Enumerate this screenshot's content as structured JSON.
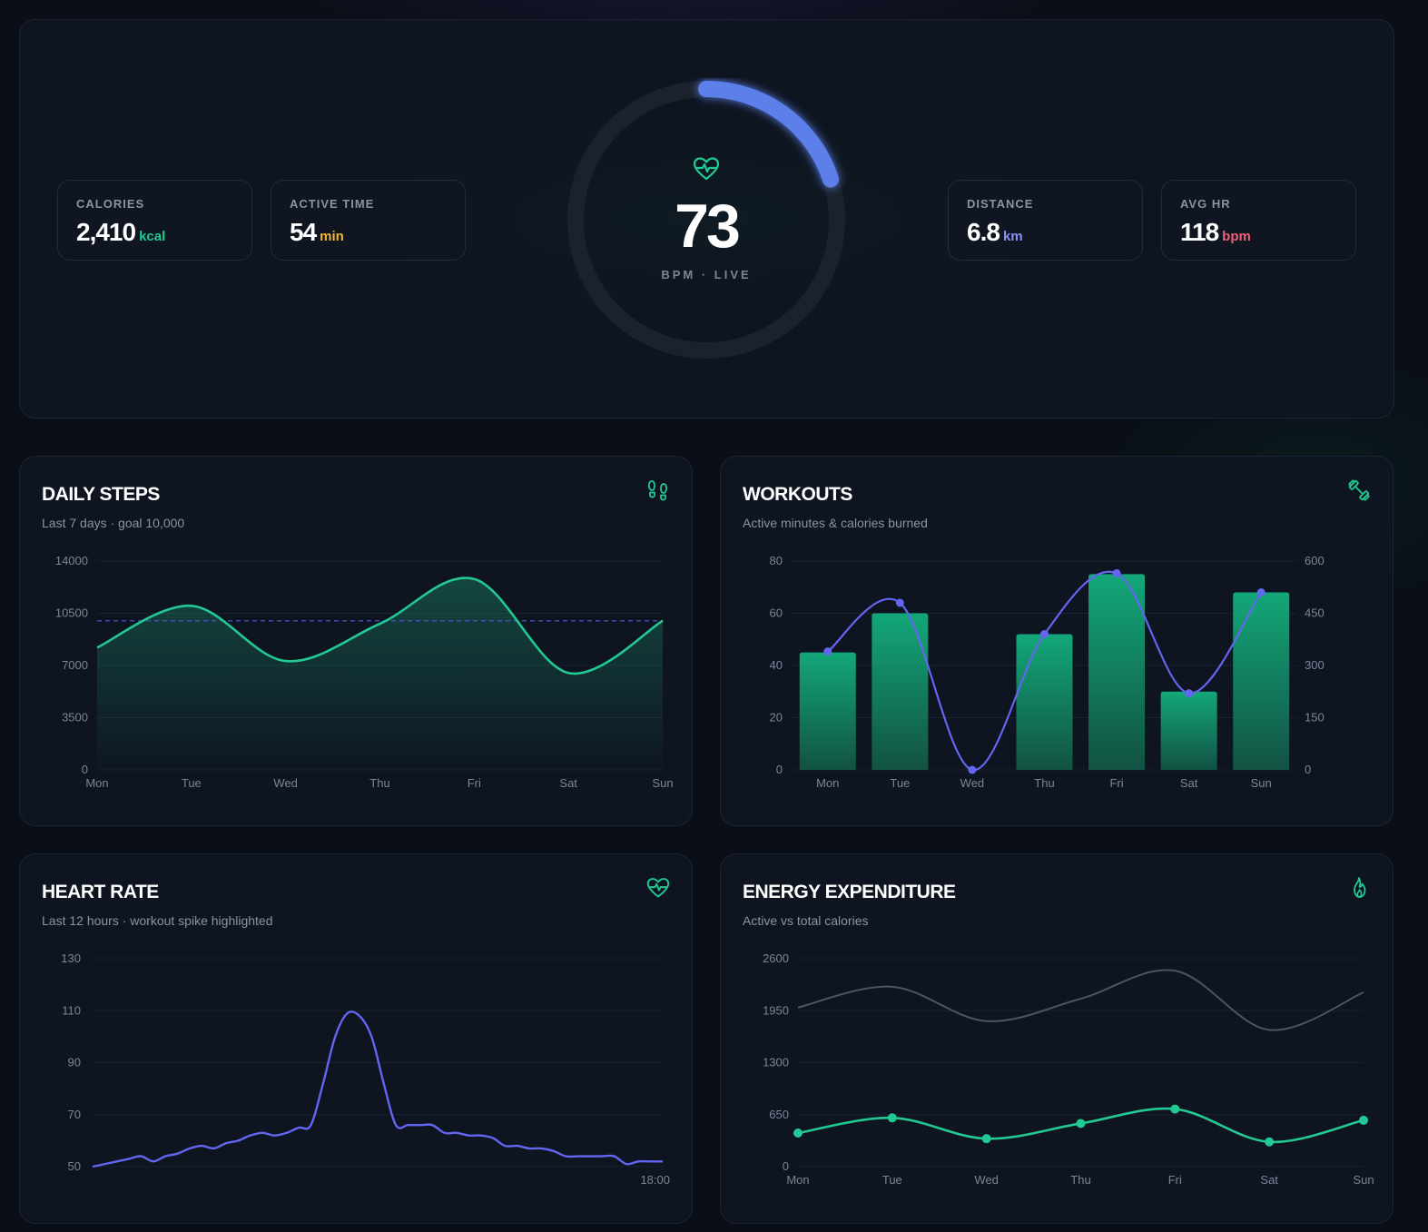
{
  "hero": {
    "stats_left": [
      {
        "label": "CALORIES",
        "value": "2,410",
        "unit": "kcal",
        "unit_color": "#22c993"
      },
      {
        "label": "ACTIVE TIME",
        "value": "54",
        "unit": "min",
        "unit_color": "#f5b731"
      }
    ],
    "stats_right": [
      {
        "label": "DISTANCE",
        "value": "6.8",
        "unit": "km",
        "unit_color": "#8b8ff5"
      },
      {
        "label": "AVG HR",
        "value": "118",
        "unit": "bpm",
        "unit_color": "#f0627a"
      }
    ],
    "bpm": {
      "value": "73",
      "label": "BPM · LIVE",
      "icon": "heart-pulse-icon",
      "ring_progress": 0.2
    }
  },
  "colors": {
    "accent_green": "#22c993",
    "accent_indigo": "#6366f1",
    "ring_blue": "#5b7fea"
  },
  "steps_card": {
    "title": "DAILY STEPS",
    "subtitle": "Last 7 days · goal 10,000",
    "icon": "footprints-icon",
    "chart_data": {
      "type": "area",
      "categories": [
        "Mon",
        "Tue",
        "Wed",
        "Thu",
        "Fri",
        "Sat",
        "Sun"
      ],
      "values": [
        8200,
        11000,
        7300,
        9800,
        12800,
        6500,
        10000
      ],
      "goal": 10000,
      "ylim": [
        0,
        14000
      ],
      "yticks": [
        "14000",
        "10500",
        "7000",
        "3500",
        "0"
      ]
    }
  },
  "workouts_card": {
    "title": "WORKOUTS",
    "subtitle": "Active minutes & calories burned",
    "icon": "dumbbell-icon",
    "chart_data": {
      "type": "bar",
      "categories": [
        "Mon",
        "Tue",
        "Wed",
        "Thu",
        "Fri",
        "Sat",
        "Sun"
      ],
      "series": [
        {
          "values": [
            45,
            60,
            0,
            52,
            75,
            30,
            68
          ],
          "axis": "left"
        },
        {
          "values": [
            340,
            480,
            0,
            390,
            565,
            220,
            510
          ],
          "axis": "right",
          "type": "line"
        }
      ],
      "ylim_left": [
        0,
        80
      ],
      "ylim_right": [
        0,
        600
      ],
      "yticks_left": [
        "80",
        "60",
        "40",
        "20",
        "0"
      ],
      "yticks_right": [
        "600",
        "450",
        "300",
        "150",
        "0"
      ]
    }
  },
  "heart_card": {
    "title": "HEART RATE",
    "subtitle": "Last 12 hours · workout spike highlighted",
    "icon": "heart-pulse-icon",
    "chart_data": {
      "type": "line",
      "ylim": [
        50,
        130
      ],
      "yticks": [
        "130",
        "110",
        "90",
        "70",
        "50"
      ],
      "x_end_label": "18:00",
      "values": [
        50,
        51,
        52,
        53,
        54,
        52,
        54,
        55,
        57,
        58,
        57,
        59,
        60,
        62,
        63,
        62,
        63,
        65,
        66,
        82,
        100,
        109,
        108,
        100,
        82,
        66,
        66,
        66,
        66,
        63,
        63,
        62,
        62,
        61,
        58,
        58,
        57,
        57,
        56,
        54,
        54,
        54,
        54,
        54,
        51,
        52,
        52,
        52
      ]
    }
  },
  "energy_card": {
    "title": "ENERGY EXPENDITURE",
    "subtitle": "Active vs total calories",
    "icon": "flame-icon",
    "chart_data": {
      "type": "line",
      "categories": [
        "Mon",
        "Tue",
        "Wed",
        "Thu",
        "Fri",
        "Sat",
        "Sun"
      ],
      "series": [
        {
          "values": [
            1990,
            2250,
            1820,
            2100,
            2450,
            1710,
            2180
          ]
        },
        {
          "values": [
            420,
            610,
            350,
            540,
            720,
            310,
            580
          ]
        }
      ],
      "ylim": [
        0,
        2600
      ],
      "yticks": [
        "2600",
        "1950",
        "1300",
        "650",
        "0"
      ]
    }
  }
}
